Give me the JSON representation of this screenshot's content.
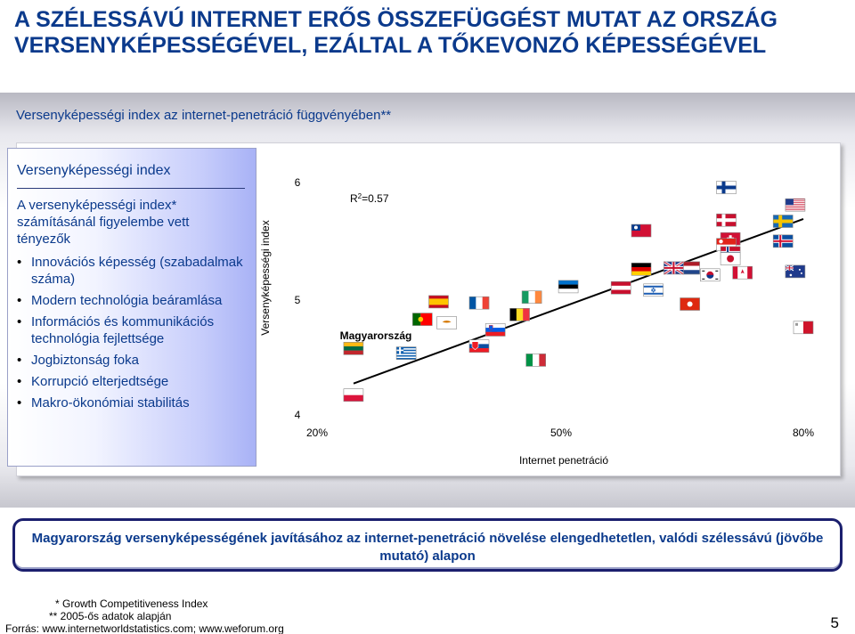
{
  "slide": {
    "title_line1": "A SZÉLESSÁVÚ INTERNET ERŐS ÖSSZEFÜGGÉST MUTAT AZ ORSZÁG",
    "title_line2": "VERSENYKÉPESSÉGÉVEL, EZÁLTAL A TŐKEVONZÓ KÉPESSÉGÉVEL",
    "subtitle": "Versenyképességi index az internet-penetráció függvényében**",
    "page_number": "5"
  },
  "factors": {
    "heading": "Versenyképességi index",
    "intro": "A versenyképességi index* számításánál figyelembe vett tényezők",
    "items": [
      "Innovációs képesség (szabadalmak száma)",
      "Modern technológia beáramlása",
      "Információs és kommunikációs technológia fejlettsége",
      "Jogbiztonság foka",
      "Korrupció elterjedtsége",
      "Makro-ökonómiai stabilitás"
    ]
  },
  "conclusion": "Magyarország versenyképességének javításához az internet-penetráció növelése elengedhetetlen, valódi szélessávú (jövőbe mutató) alapon",
  "footnotes": {
    "f1": "* Growth Competitiveness Index",
    "f2": "** 2005-ős adatok alapján",
    "source": "Forrás: www.internetworldstatistics.com; www.weforum.org"
  },
  "chart_data": {
    "type": "scatter",
    "xlabel": "Internet penetráció",
    "ylabel": "Versenyképességi index",
    "x_ticks": [
      "20%",
      "50%",
      "80%"
    ],
    "y_ticks": [
      "6",
      "5",
      "4"
    ],
    "xlim": [
      0.2,
      0.8
    ],
    "ylim": [
      4,
      6
    ],
    "r2_label_main": "R",
    "r2_label_sup": "2",
    "r2_label_rest": "=0.57",
    "highlight_label": "Magyarország",
    "trendline": {
      "x1": 0.245,
      "y1": 4.27,
      "x2": 0.8,
      "y2": 5.68
    },
    "points": [
      {
        "flag": "finland",
        "x": 0.705,
        "y": 5.95
      },
      {
        "flag": "usa",
        "x": 0.79,
        "y": 5.8
      },
      {
        "flag": "sweden",
        "x": 0.775,
        "y": 5.66
      },
      {
        "flag": "denmark",
        "x": 0.705,
        "y": 5.67
      },
      {
        "flag": "taiwan",
        "x": 0.6,
        "y": 5.58
      },
      {
        "flag": "switzerland",
        "x": 0.71,
        "y": 5.51
      },
      {
        "flag": "singapore",
        "x": 0.705,
        "y": 5.46
      },
      {
        "flag": "iceland",
        "x": 0.775,
        "y": 5.49
      },
      {
        "flag": "norway",
        "x": 0.71,
        "y": 5.39
      },
      {
        "flag": "netherlands",
        "x": 0.66,
        "y": 5.26
      },
      {
        "flag": "japan",
        "x": 0.71,
        "y": 5.34
      },
      {
        "flag": "germany",
        "x": 0.6,
        "y": 5.25
      },
      {
        "flag": "uk",
        "x": 0.64,
        "y": 5.26
      },
      {
        "flag": "korea",
        "x": 0.685,
        "y": 5.2
      },
      {
        "flag": "canada",
        "x": 0.725,
        "y": 5.22
      },
      {
        "flag": "australia",
        "x": 0.79,
        "y": 5.23
      },
      {
        "flag": "estonia",
        "x": 0.51,
        "y": 5.1
      },
      {
        "flag": "austria",
        "x": 0.575,
        "y": 5.09
      },
      {
        "flag": "israel",
        "x": 0.615,
        "y": 5.07
      },
      {
        "flag": "ireland",
        "x": 0.465,
        "y": 5.01
      },
      {
        "flag": "spain",
        "x": 0.35,
        "y": 4.97
      },
      {
        "flag": "france",
        "x": 0.4,
        "y": 4.96
      },
      {
        "flag": "hongkong",
        "x": 0.66,
        "y": 4.95
      },
      {
        "flag": "belgium",
        "x": 0.45,
        "y": 4.86
      },
      {
        "flag": "malta",
        "x": 0.8,
        "y": 4.75
      },
      {
        "flag": "portugal",
        "x": 0.33,
        "y": 4.82
      },
      {
        "flag": "slovenia",
        "x": 0.42,
        "y": 4.73
      },
      {
        "flag": "cyprus",
        "x": 0.36,
        "y": 4.79
      },
      {
        "flag": "lithuania",
        "x": 0.245,
        "y": 4.57
      },
      {
        "flag": "greece",
        "x": 0.31,
        "y": 4.53
      },
      {
        "flag": "slovakia",
        "x": 0.4,
        "y": 4.59
      },
      {
        "flag": "italy",
        "x": 0.47,
        "y": 4.47
      },
      {
        "flag": "poland",
        "x": 0.245,
        "y": 4.17
      }
    ]
  }
}
